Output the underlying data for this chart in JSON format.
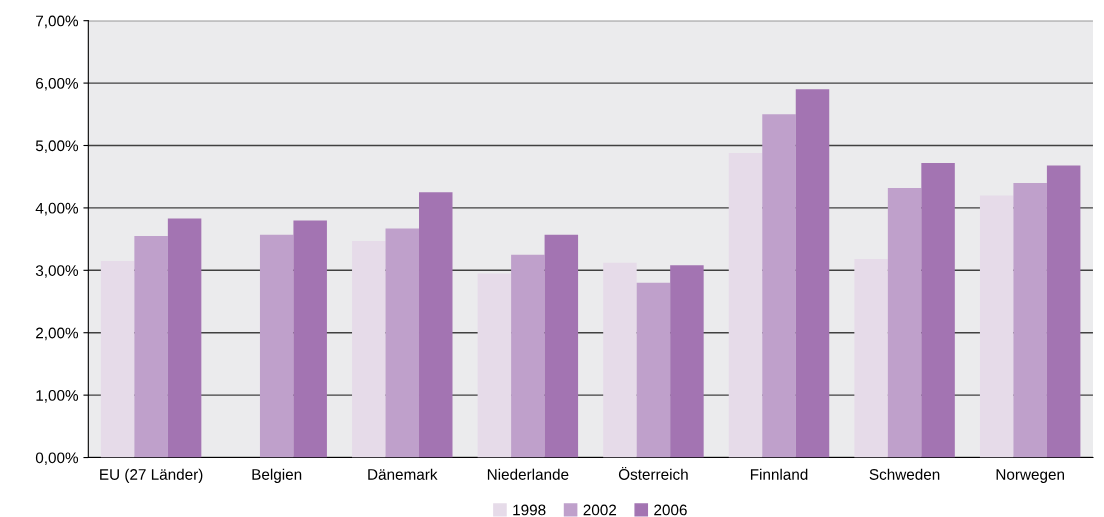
{
  "chart_data": {
    "type": "bar",
    "categories": [
      "EU (27 Länder)",
      "Belgien",
      "Dänemark",
      "Niederlande",
      "Österreich",
      "Finnland",
      "Schweden",
      "Norwegen"
    ],
    "series": [
      {
        "name": "1998",
        "color": "#e6dbe9",
        "values": [
          3.15,
          null,
          3.47,
          2.95,
          3.12,
          4.88,
          3.18,
          4.2
        ]
      },
      {
        "name": "2002",
        "color": "#bfa0cb",
        "values": [
          3.55,
          3.57,
          3.67,
          3.25,
          2.8,
          5.5,
          4.32,
          4.4
        ]
      },
      {
        "name": "2006",
        "color": "#a374b2",
        "values": [
          3.83,
          3.8,
          4.25,
          3.57,
          3.08,
          5.9,
          4.72,
          4.68
        ]
      }
    ],
    "ylim": [
      0,
      7
    ],
    "yticks": [
      {
        "value": 0,
        "label": "0,00%"
      },
      {
        "value": 1,
        "label": "1,00%"
      },
      {
        "value": 2,
        "label": "2,00%"
      },
      {
        "value": 3,
        "label": "3,00%"
      },
      {
        "value": 4,
        "label": "4,00%"
      },
      {
        "value": 5,
        "label": "5,00%"
      },
      {
        "value": 6,
        "label": "6,00%"
      },
      {
        "value": 7,
        "label": "7,00%"
      }
    ],
    "grid": "y",
    "legend": "bottom"
  }
}
